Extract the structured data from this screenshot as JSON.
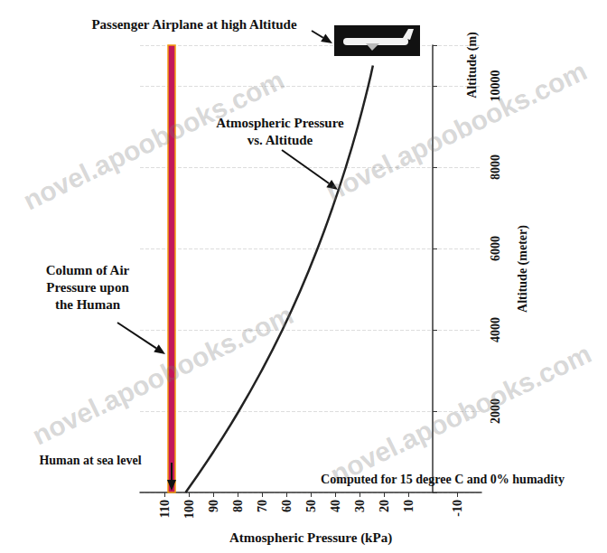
{
  "chart_data": {
    "type": "line",
    "x": [
      101.3,
      89.9,
      79.5,
      70.1,
      61.6,
      54.0,
      47.2,
      41.1,
      35.6,
      30.7,
      26.4,
      24.5
    ],
    "values": [
      0,
      1000,
      2000,
      3000,
      4000,
      5000,
      6000,
      7000,
      8000,
      9000,
      10000,
      10500
    ],
    "color": "#222222",
    "xlabel": "Atmospheric Pressure (kPa)",
    "ylabel": "Altitude (meter)",
    "xlim": [
      120,
      -20
    ],
    "xticks": [
      110,
      100,
      90,
      80,
      70,
      60,
      50,
      40,
      30,
      20,
      10,
      -10
    ],
    "ylim": [
      0,
      11000
    ],
    "yticks": [
      2000,
      4000,
      6000,
      8000,
      10000
    ],
    "grid": true,
    "annotations": {
      "airplane": "Passenger Airplane at high Altitude",
      "curve": "Atmospheric Pressure\nvs. Altitude",
      "column": "Column of Air\nPressure upon\nthe Human",
      "human": "Human at sea level",
      "note": "Computed for 15 degree C and 0% humadity",
      "axis_unit": "Altitude (m)",
      "watermark": "novel.apoobooks.com"
    }
  }
}
